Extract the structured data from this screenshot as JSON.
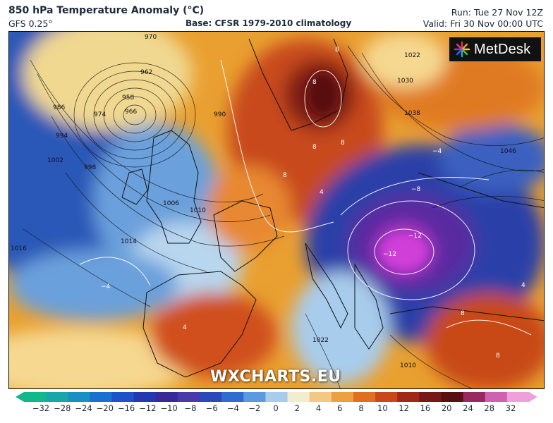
{
  "header": {
    "title": "850 hPa Temperature Anomaly (°C)",
    "subtitle": "GFS 0.25°",
    "base": "Base: CFSR 1979-2010 climatology",
    "run": "Run: Tue 27 Nov 12Z",
    "valid": "Valid: Fri 30 Nov 00:00 UTC"
  },
  "logo": {
    "text": "MetDesk",
    "icon": "metdesk-starburst-icon"
  },
  "watermark": "WXCHARTS.EU",
  "colorbar": {
    "ticks": [
      "−32",
      "−28",
      "−24",
      "−20",
      "−16",
      "−12",
      "−10",
      "−8",
      "−6",
      "−4",
      "−2",
      "0",
      "2",
      "4",
      "6",
      "8",
      "10",
      "12",
      "16",
      "20",
      "24",
      "28",
      "32"
    ],
    "colors": [
      "#10b88a",
      "#18a6a8",
      "#1a8fc4",
      "#1a70d0",
      "#1e52c8",
      "#2438b0",
      "#3a2a98",
      "#4a3aa8",
      "#2a48b8",
      "#2f6cd0",
      "#5b9ae0",
      "#a8ccec",
      "#f2ecd0",
      "#f4c880",
      "#eea040",
      "#e07020",
      "#c84818",
      "#a02818",
      "#781818",
      "#5a1010",
      "#9a2860",
      "#d060b0",
      "#f0a0d8"
    ]
  },
  "map": {
    "pressure_labels": [
      "970",
      "962",
      "958",
      "966",
      "974",
      "986",
      "990",
      "994",
      "1002",
      "998",
      "1006",
      "1010",
      "1014",
      "1016",
      "1022",
      "1030",
      "1038",
      "1046",
      "1022",
      "1010"
    ],
    "anomaly_labels": [
      "8",
      "8",
      "8",
      "8",
      "8",
      "4",
      "−4",
      "−8",
      "−12",
      "−12",
      "−4",
      "4",
      "8",
      "4",
      "8"
    ]
  }
}
